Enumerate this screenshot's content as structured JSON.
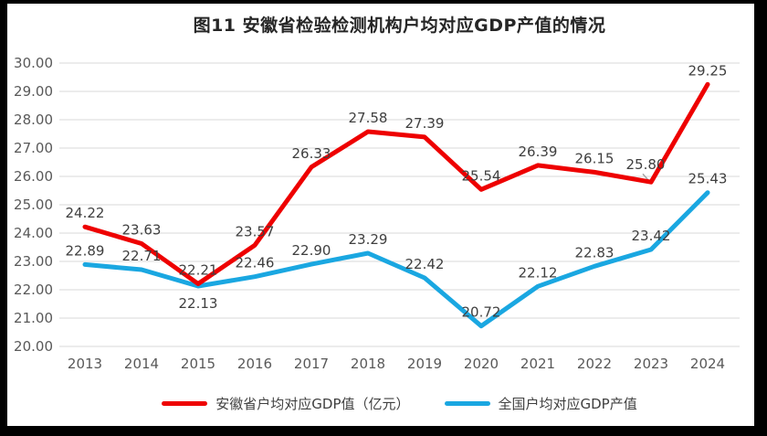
{
  "chart_data": {
    "type": "line",
    "title": "图11 安徽省检验检测机构户均对应GDP产值的情况",
    "categories": [
      "2013",
      "2014",
      "2015",
      "2016",
      "2017",
      "2018",
      "2019",
      "2020",
      "2021",
      "2022",
      "2023",
      "2024"
    ],
    "series": [
      {
        "name": "安徽省户均对应GDP值（亿元）",
        "color": "#EE0000",
        "values": [
          24.22,
          23.63,
          22.21,
          23.57,
          26.33,
          27.58,
          27.39,
          25.54,
          26.39,
          26.15,
          25.8,
          29.25
        ]
      },
      {
        "name": "全国户均对应GDP产值",
        "color": "#1AA7E1",
        "values": [
          22.89,
          22.71,
          22.13,
          22.46,
          22.9,
          23.29,
          22.42,
          20.72,
          22.12,
          22.83,
          23.42,
          25.43
        ]
      }
    ],
    "ylim": [
      20,
      30
    ],
    "yticks": [
      "20.00",
      "21.00",
      "22.00",
      "23.00",
      "24.00",
      "25.00",
      "26.00",
      "27.00",
      "28.00",
      "29.00",
      "30.00"
    ],
    "grid": true,
    "legend_position": "bottom",
    "colors": {
      "gridline": "#D9D9D9",
      "axis_label": "#595959",
      "data_label": "#3F3F3F",
      "leader_line": "#A6A6A6",
      "frame_border": "#000000"
    }
  }
}
